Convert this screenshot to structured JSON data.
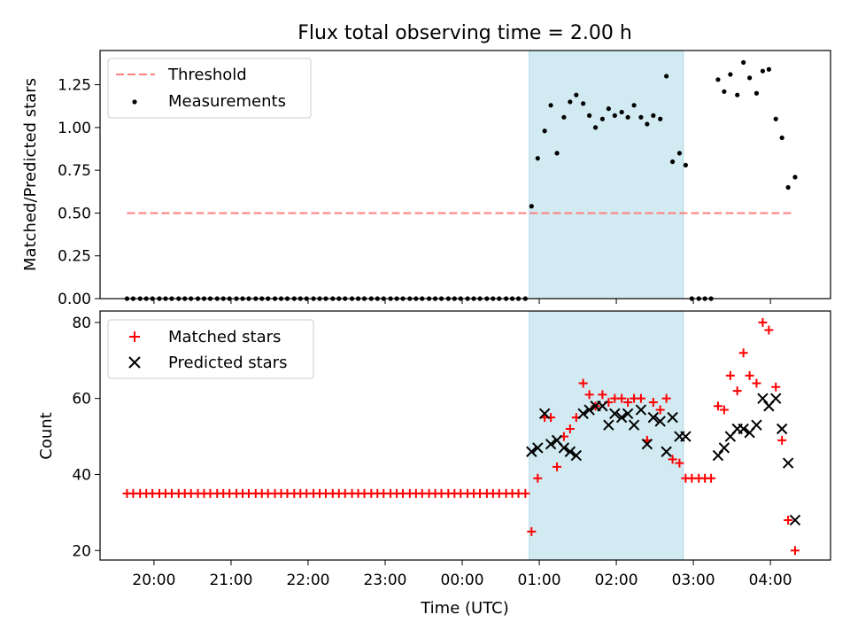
{
  "chart_data": [
    {
      "type": "scatter",
      "title": "Flux total observing time = 2.00 h",
      "ylabel": "Matched/Predicted stars",
      "ylim": [
        0,
        1.45
      ],
      "yticks": [
        0.0,
        0.25,
        0.5,
        0.75,
        1.0,
        1.25
      ],
      "ytick_labels": [
        "0.00",
        "0.25",
        "0.50",
        "0.75",
        "1.00",
        "1.25"
      ],
      "xlim": [
        19.3,
        28.78
      ],
      "shaded_span": [
        24.87,
        26.87
      ],
      "shade_color": "#add8e6",
      "legend_location": "upper left",
      "legend": [
        "Threshold",
        "Measurements"
      ],
      "series": [
        {
          "name": "Threshold",
          "kind": "dashed-line",
          "color": "#ff7f7f",
          "x": [
            19.65,
            28.3
          ],
          "y": [
            0.5,
            0.5
          ]
        },
        {
          "name": "Measurements",
          "kind": "dots",
          "color": "#000000",
          "x": [
            19.65,
            19.73,
            19.82,
            19.9,
            19.98,
            20.07,
            20.15,
            20.23,
            20.32,
            20.4,
            20.48,
            20.57,
            20.65,
            20.73,
            20.82,
            20.9,
            20.98,
            21.07,
            21.15,
            21.23,
            21.32,
            21.4,
            21.48,
            21.57,
            21.65,
            21.73,
            21.82,
            21.9,
            21.98,
            22.07,
            22.15,
            22.23,
            22.32,
            22.4,
            22.48,
            22.57,
            22.65,
            22.73,
            22.82,
            22.9,
            22.98,
            23.07,
            23.15,
            23.23,
            23.32,
            23.4,
            23.48,
            23.57,
            23.65,
            23.73,
            23.82,
            23.9,
            23.98,
            24.07,
            24.15,
            24.23,
            24.32,
            24.4,
            24.48,
            24.57,
            24.65,
            24.73,
            24.82,
            24.9,
            24.98,
            25.07,
            25.15,
            25.23,
            25.32,
            25.4,
            25.48,
            25.57,
            25.65,
            25.73,
            25.82,
            25.9,
            25.98,
            26.07,
            26.15,
            26.23,
            26.32,
            26.4,
            26.48,
            26.57,
            26.65,
            26.73,
            26.82,
            26.9,
            26.98,
            27.07,
            27.15,
            27.23,
            27.32,
            27.4,
            27.48,
            27.57,
            27.65,
            27.73,
            27.82,
            27.9,
            27.98,
            28.07,
            28.15,
            28.23,
            28.32
          ],
          "y": [
            0,
            0,
            0,
            0,
            0,
            0,
            0,
            0,
            0,
            0,
            0,
            0,
            0,
            0,
            0,
            0,
            0,
            0,
            0,
            0,
            0,
            0,
            0,
            0,
            0,
            0,
            0,
            0,
            0,
            0,
            0,
            0,
            0,
            0,
            0,
            0,
            0,
            0,
            0,
            0,
            0,
            0,
            0,
            0,
            0,
            0,
            0,
            0,
            0,
            0,
            0,
            0,
            0,
            0,
            0,
            0,
            0,
            0,
            0,
            0,
            0,
            0,
            0,
            0.54,
            0.82,
            0.98,
            1.13,
            0.85,
            1.06,
            1.15,
            1.19,
            1.14,
            1.07,
            1.0,
            1.05,
            1.11,
            1.07,
            1.09,
            1.06,
            1.13,
            1.06,
            1.02,
            1.07,
            1.05,
            1.3,
            0.8,
            0.85,
            0.78,
            0,
            0,
            0,
            0,
            1.28,
            1.21,
            1.31,
            1.19,
            1.38,
            1.29,
            1.2,
            1.33,
            1.34,
            1.05,
            0.94,
            0.65,
            0.71
          ]
        }
      ]
    },
    {
      "type": "scatter",
      "xlabel": "Time (UTC)",
      "ylabel": "Count",
      "ylim": [
        17.5,
        83
      ],
      "yticks": [
        20,
        40,
        60,
        80
      ],
      "ytick_labels": [
        "20",
        "40",
        "60",
        "80"
      ],
      "xlim": [
        19.3,
        28.78
      ],
      "xticks": [
        20,
        21,
        22,
        23,
        24,
        25,
        26,
        27,
        28
      ],
      "xtick_labels": [
        "20:00",
        "21:00",
        "22:00",
        "23:00",
        "00:00",
        "01:00",
        "02:00",
        "03:00",
        "04:00"
      ],
      "shaded_span": [
        24.87,
        26.87
      ],
      "shade_color": "#add8e6",
      "legend_location": "upper left",
      "legend": [
        "Matched stars",
        "Predicted stars"
      ],
      "series": [
        {
          "name": "Matched stars",
          "marker": "plus",
          "color": "#ff0000",
          "x": [
            19.65,
            19.73,
            19.82,
            19.9,
            19.98,
            20.07,
            20.15,
            20.23,
            20.32,
            20.4,
            20.48,
            20.57,
            20.65,
            20.73,
            20.82,
            20.9,
            20.98,
            21.07,
            21.15,
            21.23,
            21.32,
            21.4,
            21.48,
            21.57,
            21.65,
            21.73,
            21.82,
            21.9,
            21.98,
            22.07,
            22.15,
            22.23,
            22.32,
            22.4,
            22.48,
            22.57,
            22.65,
            22.73,
            22.82,
            22.9,
            22.98,
            23.07,
            23.15,
            23.23,
            23.32,
            23.4,
            23.48,
            23.57,
            23.65,
            23.73,
            23.82,
            23.9,
            23.98,
            24.07,
            24.15,
            24.23,
            24.32,
            24.4,
            24.48,
            24.57,
            24.65,
            24.73,
            24.82,
            24.9,
            24.98,
            25.07,
            25.15,
            25.23,
            25.32,
            25.4,
            25.48,
            25.57,
            25.65,
            25.73,
            25.82,
            25.9,
            25.98,
            26.07,
            26.15,
            26.23,
            26.32,
            26.4,
            26.48,
            26.57,
            26.65,
            26.73,
            26.82,
            26.9,
            26.98,
            27.07,
            27.15,
            27.23,
            27.32,
            27.4,
            27.48,
            27.57,
            27.65,
            27.73,
            27.82,
            27.9,
            27.98,
            28.07,
            28.15,
            28.23,
            28.32
          ],
          "y": [
            35,
            35,
            35,
            35,
            35,
            35,
            35,
            35,
            35,
            35,
            35,
            35,
            35,
            35,
            35,
            35,
            35,
            35,
            35,
            35,
            35,
            35,
            35,
            35,
            35,
            35,
            35,
            35,
            35,
            35,
            35,
            35,
            35,
            35,
            35,
            35,
            35,
            35,
            35,
            35,
            35,
            35,
            35,
            35,
            35,
            35,
            35,
            35,
            35,
            35,
            35,
            35,
            35,
            35,
            35,
            35,
            35,
            35,
            35,
            35,
            35,
            35,
            35,
            25,
            39,
            55,
            55,
            42,
            50,
            52,
            55,
            64,
            61,
            58,
            61,
            59,
            60,
            60,
            59,
            60,
            60,
            49,
            59,
            57,
            60,
            44,
            43,
            39,
            39,
            39,
            39,
            39,
            58,
            57,
            66,
            62,
            72,
            66,
            64,
            80,
            78,
            63,
            49,
            28,
            20
          ]
        },
        {
          "name": "Predicted stars",
          "marker": "x",
          "color": "#000000",
          "x": [
            24.9,
            24.98,
            25.07,
            25.15,
            25.23,
            25.32,
            25.4,
            25.48,
            25.57,
            25.65,
            25.73,
            25.82,
            25.9,
            25.98,
            26.07,
            26.15,
            26.23,
            26.32,
            26.4,
            26.48,
            26.57,
            26.65,
            26.73,
            26.82,
            26.9,
            27.32,
            27.4,
            27.48,
            27.57,
            27.65,
            27.73,
            27.82,
            27.9,
            27.98,
            28.07,
            28.15,
            28.23,
            28.32
          ],
          "y": [
            46,
            47,
            56,
            48,
            49,
            47,
            46,
            45,
            56,
            57,
            58,
            58,
            53,
            56,
            55,
            56,
            53,
            57,
            48,
            55,
            54,
            46,
            55,
            50,
            50,
            45,
            47,
            50,
            52,
            52,
            51,
            53,
            60,
            58,
            60,
            52,
            43,
            28
          ]
        }
      ]
    }
  ]
}
